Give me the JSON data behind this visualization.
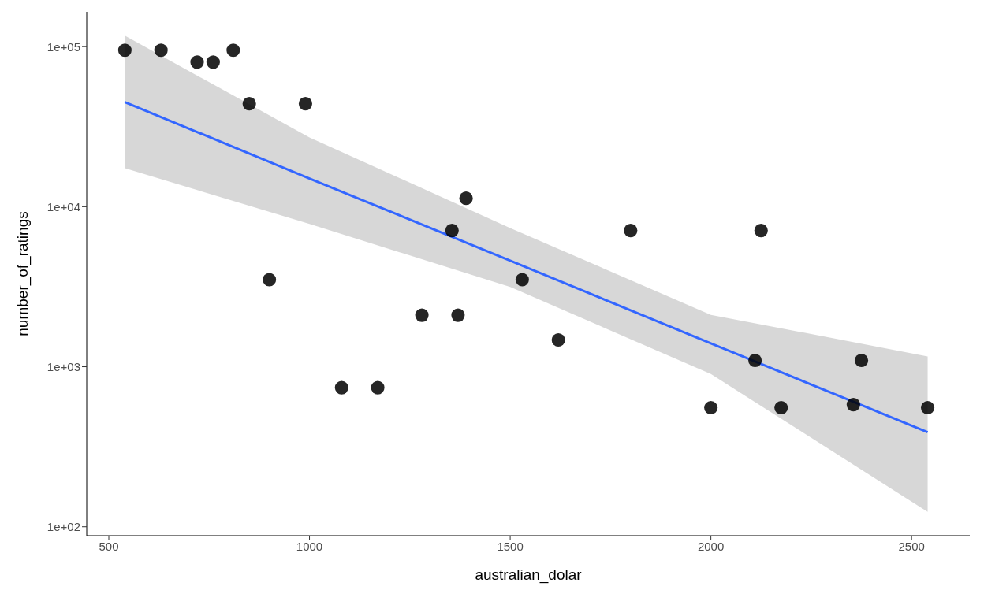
{
  "chart_data": {
    "type": "scatter",
    "xlabel": "australian_dolar",
    "ylabel": "number_of_ratings",
    "log": "y",
    "grid": false,
    "xlim": [
      445,
      2645
    ],
    "xticks": [
      500,
      1000,
      1500,
      2000,
      2500
    ],
    "ylim": [
      88,
      165000
    ],
    "yticks": [
      {
        "value": 100,
        "label": "1e+02"
      },
      {
        "value": 1000,
        "label": "1e+03"
      },
      {
        "value": 10000,
        "label": "1e+04"
      },
      {
        "value": 100000,
        "label": "1e+05"
      }
    ],
    "series": [
      {
        "marker": "circle",
        "color": "#000000",
        "x": [
          540,
          630,
          720,
          760,
          810,
          850,
          990,
          900,
          1080,
          1170,
          1280,
          1355,
          1370,
          1390,
          1530,
          1620,
          1800,
          2000,
          2110,
          2125,
          2355,
          2375,
          2175,
          2540
        ],
        "values": [
          95000,
          95000,
          80000,
          80000,
          95000,
          44000,
          44000,
          3500,
          740,
          740,
          2100,
          7100,
          2100,
          11300,
          3500,
          1470,
          7100,
          555,
          1095,
          7100,
          580,
          1095,
          555,
          555
        ]
      },
      {
        "type": "line",
        "color": "#3366ff",
        "x": [
          540,
          1000,
          1500,
          2000,
          2540
        ],
        "values": [
          45000,
          15000,
          4600,
          1400,
          390
        ],
        "lower": [
          17400,
          7800,
          3150,
          900,
          124
        ],
        "upper": [
          117000,
          27100,
          7360,
          2110,
          1160
        ]
      }
    ]
  }
}
